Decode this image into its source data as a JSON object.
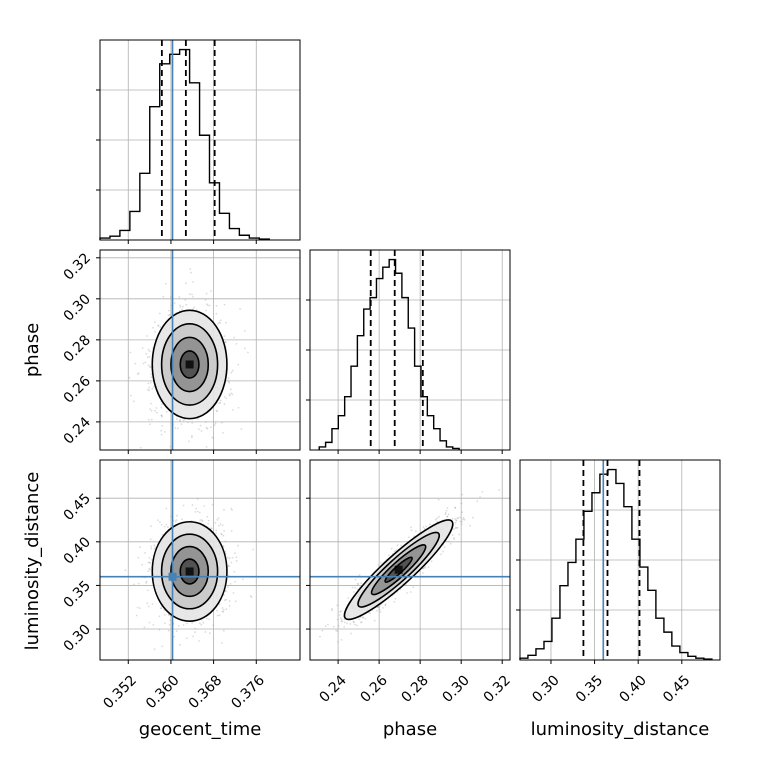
{
  "chart_data": {
    "type": "corner",
    "parameters": [
      "geocent_time",
      "phase",
      "luminosity_distance"
    ],
    "axis_labels": {
      "x": [
        "geocent_time",
        "phase",
        "luminosity_distance"
      ],
      "y": [
        "phase",
        "luminosity_distance"
      ]
    },
    "ranges": {
      "geocent_time": [
        0.3467,
        0.3842
      ],
      "phase": [
        0.2263,
        0.3238
      ],
      "luminosity_distance": [
        0.2645,
        0.4938
      ]
    },
    "ticks": {
      "geocent_time": [
        {
          "value": 0.352,
          "label": "0.352"
        },
        {
          "value": 0.36,
          "label": "0.360"
        },
        {
          "value": 0.368,
          "label": "0.368"
        },
        {
          "value": 0.376,
          "label": "0.376"
        }
      ],
      "phase": [
        {
          "value": 0.24,
          "label": "0.24"
        },
        {
          "value": 0.26,
          "label": "0.26"
        },
        {
          "value": 0.28,
          "label": "0.28"
        },
        {
          "value": 0.3,
          "label": "0.30"
        },
        {
          "value": 0.32,
          "label": "0.32"
        }
      ],
      "luminosity_distance_x": [
        {
          "value": 0.3,
          "label": "0.30"
        },
        {
          "value": 0.35,
          "label": "0.35"
        },
        {
          "value": 0.4,
          "label": "0.40"
        },
        {
          "value": 0.45,
          "label": "0.45"
        }
      ],
      "luminosity_distance_y": [
        {
          "value": 0.3,
          "label": "0.30"
        },
        {
          "value": 0.35,
          "label": "0.35"
        },
        {
          "value": 0.4,
          "label": "0.40"
        },
        {
          "value": 0.45,
          "label": "0.45"
        }
      ]
    },
    "truths": {
      "geocent_time": 0.3603,
      "phase": null,
      "luminosity_distance": 0.36
    },
    "marginals": {
      "geocent_time": {
        "quantiles": [
          0.3583,
          0.3628,
          0.3682
        ],
        "bin_edges": [
          0.3467,
          0.34857,
          0.35043,
          0.3523,
          0.35417,
          0.35603,
          0.3579,
          0.35977,
          0.36163,
          0.3635,
          0.36537,
          0.36723,
          0.3691,
          0.37097,
          0.37283,
          0.3747,
          0.37657,
          0.37843
        ],
        "counts": [
          2,
          4,
          10,
          30,
          70,
          140,
          185,
          195,
          200,
          165,
          110,
          60,
          28,
          12,
          5,
          2,
          1
        ]
      },
      "phase": {
        "quantiles": [
          0.2559,
          0.2676,
          0.2813
        ],
        "bin_edges": [
          0.2308,
          0.2339,
          0.237,
          0.2401,
          0.2432,
          0.2463,
          0.2494,
          0.2525,
          0.2556,
          0.2587,
          0.2618,
          0.2649,
          0.268,
          0.2711,
          0.2742,
          0.2773,
          0.2804,
          0.2835,
          0.2866,
          0.2897,
          0.2928,
          0.2959,
          0.299
        ],
        "counts": [
          4,
          10,
          28,
          45,
          70,
          110,
          150,
          185,
          200,
          225,
          240,
          250,
          232,
          200,
          160,
          110,
          70,
          45,
          28,
          12,
          4,
          2
        ]
      },
      "luminosity_distance": {
        "quantiles": [
          0.3372,
          0.3648,
          0.4015
        ],
        "bin_edges": [
          0.2645,
          0.2736,
          0.2828,
          0.292,
          0.3011,
          0.3103,
          0.3195,
          0.3286,
          0.3378,
          0.347,
          0.3561,
          0.3653,
          0.3745,
          0.3836,
          0.3928,
          0.402,
          0.4111,
          0.4203,
          0.4295,
          0.4386,
          0.4478,
          0.457,
          0.4661,
          0.4753,
          0.4845
        ],
        "counts": [
          2,
          5,
          12,
          20,
          45,
          80,
          105,
          130,
          160,
          180,
          200,
          205,
          190,
          165,
          130,
          100,
          75,
          45,
          30,
          15,
          8,
          4,
          2,
          1
        ]
      }
    },
    "joint": [
      {
        "x": "geocent_time",
        "y": "phase",
        "peak": [
          0.3635,
          0.268
        ],
        "sigma": [
          0.0035,
          0.0132
        ],
        "rho": 0.0
      },
      {
        "x": "geocent_time",
        "y": "luminosity_distance",
        "peak": [
          0.3635,
          0.366
        ],
        "sigma": [
          0.0035,
          0.0285
        ],
        "rho": 0.0
      },
      {
        "x": "phase",
        "y": "luminosity_distance",
        "peak": [
          0.2695,
          0.368
        ],
        "sigma": [
          0.0132,
          0.0285
        ],
        "rho": 0.92
      }
    ],
    "contour_levels": [
      "0.5σ",
      "1σ",
      "1.5σ",
      "2σ"
    ],
    "grid": true,
    "colors": {
      "truth": "#4682b4",
      "hist": "#000000",
      "grid": "#b0b0b0",
      "scatter": "#9a9a9a"
    }
  }
}
